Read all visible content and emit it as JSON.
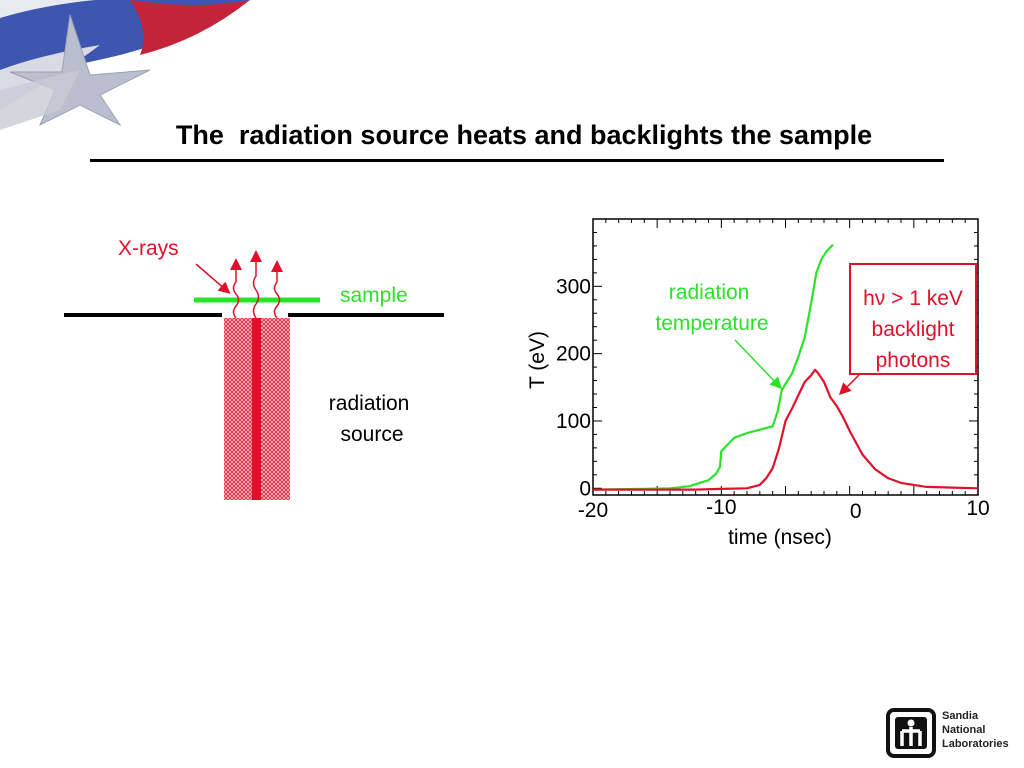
{
  "title": "The  radiation source heats and backlights the sample",
  "diagram": {
    "xrays_label": "X-rays",
    "sample_label": "sample",
    "source_label": "radiation\nsource"
  },
  "annotations": {
    "radiation_temperature": "radiation\ntemperature",
    "backlight": "hν > 1 keV\nbacklight\nphotons"
  },
  "footer": {
    "lab_name": "Sandia\nNational\nLaboratories"
  },
  "colors": {
    "green": "#2be22b",
    "red": "#e0102a",
    "black": "#000000"
  },
  "chart_data": {
    "type": "line",
    "xlabel": "time (nsec)",
    "ylabel": "T (eV)",
    "xlim": [
      -20,
      10
    ],
    "ylim": [
      -10,
      400
    ],
    "x_ticks": [
      -20,
      -10,
      0,
      10
    ],
    "y_ticks": [
      0,
      100,
      200,
      300
    ],
    "series": [
      {
        "name": "radiation temperature",
        "color": "#2be22b",
        "x": [
          -20,
          -16,
          -14,
          -12.5,
          -11,
          -10.4,
          -10.1,
          -10.0,
          -9.5,
          -9,
          -8,
          -7,
          -6,
          -5.6,
          -5.3,
          -5.0,
          -4.5,
          -4.0,
          -3.5,
          -3.0,
          -2.6,
          -2.2,
          -1.8,
          -1.3
        ],
        "y": [
          -2,
          -1,
          0,
          3,
          12,
          22,
          32,
          55,
          65,
          75,
          82,
          87,
          92,
          115,
          145,
          155,
          170,
          195,
          225,
          275,
          320,
          340,
          352,
          362
        ]
      },
      {
        "name": "backlight photons",
        "color": "#e0102a",
        "x": [
          -20,
          -12,
          -10,
          -8,
          -7,
          -6.5,
          -6,
          -5.5,
          -5,
          -4.5,
          -4,
          -3.5,
          -3,
          -2.7,
          -2.5,
          -2,
          -1.5,
          -1,
          -0.5,
          0,
          1,
          2,
          3,
          4,
          6,
          8,
          10
        ],
        "y": [
          -2,
          -2,
          -1,
          0,
          5,
          15,
          30,
          60,
          100,
          118,
          138,
          158,
          168,
          176,
          172,
          158,
          135,
          122,
          105,
          85,
          50,
          28,
          15,
          8,
          2,
          1,
          0
        ]
      }
    ]
  }
}
